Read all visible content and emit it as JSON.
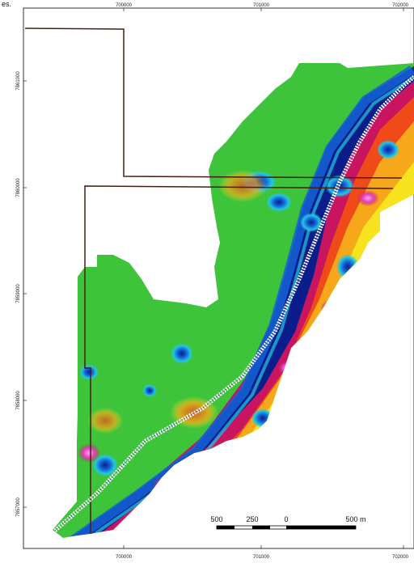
{
  "corner_text": "es.",
  "axes": {
    "x_ticks": [
      "700000",
      "701000",
      "702000"
    ],
    "y_ticks": [
      "7861000",
      "7860000",
      "7859000",
      "7858000",
      "7857000"
    ]
  },
  "scale_bar": {
    "labels": [
      "500",
      "250",
      "0",
      "500 m"
    ]
  },
  "colors": {
    "boundary_line": "#4a1c10",
    "survey_line": "#ffffff",
    "frame": "#000000"
  },
  "palette": [
    "#3ec43a",
    "#7fdc2c",
    "#c9e62a",
    "#f7e31e",
    "#f7a81a",
    "#ef4a17",
    "#c9155f",
    "#e23fbd",
    "#0a1d8a",
    "#1463d6",
    "#22c7e0",
    "#7fe0e8"
  ]
}
